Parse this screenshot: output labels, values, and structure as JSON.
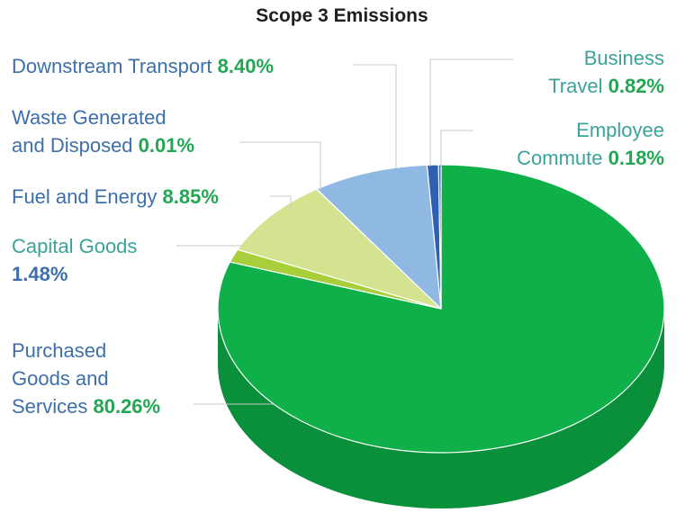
{
  "chart_data": {
    "type": "pie",
    "title": "Scope 3 Emissions",
    "slices": [
      {
        "label_lines": [
          "Purchased",
          "Goods and",
          "Services"
        ],
        "value": 80.26,
        "value_text": "80.26%",
        "color": "#0fb04a",
        "side_color": "#0a8f3a",
        "label_color": "#3d6fa9",
        "value_color": "#22a653"
      },
      {
        "label_lines": [
          "Capital Goods"
        ],
        "value": 1.48,
        "value_text": "1.48%",
        "color": "#a8cf3a",
        "side_color": "#8aae2a",
        "label_color": "#3aa39a",
        "value_color": "#3d6fa9"
      },
      {
        "label_lines": [
          "Fuel and Energy"
        ],
        "value": 8.85,
        "value_text": "8.85%",
        "color": "#d4e38f",
        "side_color": "#b9c977",
        "label_color": "#3d6fa9",
        "value_color": "#22a653"
      },
      {
        "label_lines": [
          "Waste Generated",
          "and Disposed"
        ],
        "value": 0.01,
        "value_text": "0.01%",
        "color": "#c9d9ee",
        "side_color": "#a9bcd6",
        "label_color": "#3d6fa9",
        "value_color": "#22a653"
      },
      {
        "label_lines": [
          "Downstream Transport"
        ],
        "value": 8.4,
        "value_text": "8.40%",
        "color": "#8fb8e2",
        "side_color": "#6f98c4",
        "label_color": "#3d6fa9",
        "value_color": "#22a653"
      },
      {
        "label_lines": [
          "Business",
          "Travel"
        ],
        "value": 0.82,
        "value_text": "0.82%",
        "color": "#2f5fb0",
        "side_color": "#224a8e",
        "label_color": "#3aa39a",
        "value_color": "#22a653"
      },
      {
        "label_lines": [
          "Employee",
          "Commute"
        ],
        "value": 0.18,
        "value_text": "0.18%",
        "color": "#3f64a8",
        "side_color": "#2e4e86",
        "label_color": "#3aa39a",
        "value_color": "#22a653"
      }
    ]
  }
}
